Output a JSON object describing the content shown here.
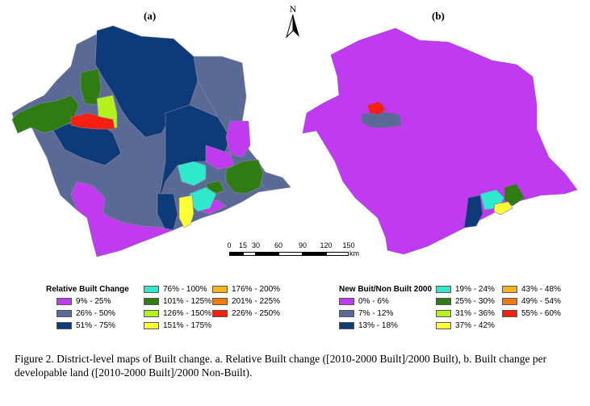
{
  "panels": [
    {
      "label": "(a)"
    },
    {
      "label": "(b)"
    }
  ],
  "north_arrow": {
    "letter": "N"
  },
  "scale_bar": {
    "ticks": [
      "0",
      "15",
      "30",
      "60",
      "90",
      "120",
      "150"
    ],
    "unit": "km"
  },
  "legend_a": {
    "title": "Relative Built Change",
    "items": [
      {
        "label": "9% - 25%",
        "color": "#c03af0"
      },
      {
        "label": "26% - 50%",
        "color": "#5a6a96"
      },
      {
        "label": "51% - 75%",
        "color": "#0d3b7a"
      },
      {
        "label": "76% - 100%",
        "color": "#30e8cc"
      },
      {
        "label": "101% - 125%",
        "color": "#2f7d12"
      },
      {
        "label": "126% - 150%",
        "color": "#b4f01e"
      },
      {
        "label": "151% - 175%",
        "color": "#ffff33"
      },
      {
        "label": "176% - 200%",
        "color": "#f7b21e"
      },
      {
        "label": "201% - 225%",
        "color": "#f07814"
      },
      {
        "label": "226% - 250%",
        "color": "#f5200f"
      }
    ]
  },
  "legend_b": {
    "title": "New Buit/Non Built 2000",
    "items": [
      {
        "label": "0% - 6%",
        "color": "#c03af0"
      },
      {
        "label": "7% - 12%",
        "color": "#5a6a96"
      },
      {
        "label": "13% - 18%",
        "color": "#0d3b7a"
      },
      {
        "label": "19% - 24%",
        "color": "#30e8cc"
      },
      {
        "label": "25% - 30%",
        "color": "#2f7d12"
      },
      {
        "label": "31% - 36%",
        "color": "#b4f01e"
      },
      {
        "label": "37% - 42%",
        "color": "#ffff33"
      },
      {
        "label": "43% - 48%",
        "color": "#f7b21e"
      },
      {
        "label": "49% - 54%",
        "color": "#f07814"
      },
      {
        "label": "55% - 60%",
        "color": "#f5200f"
      }
    ]
  },
  "caption": "Figure 2. District-level maps of Built change. a. Relative Built change ([2010-2000 Built]/2000 Built), b. Built change per developable land ([2010-2000 Built]/2000 Non-Built)."
}
